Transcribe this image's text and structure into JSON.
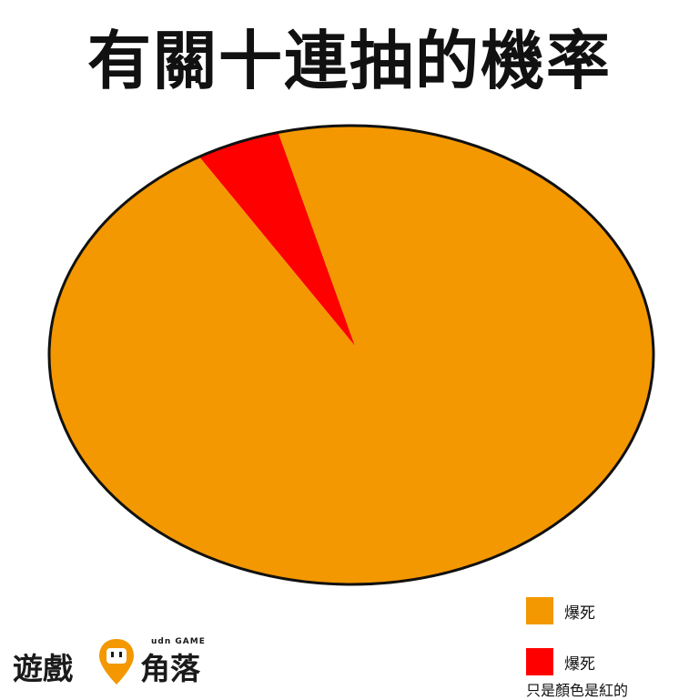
{
  "chart_data": {
    "type": "pie",
    "title": "有關十連抽的機率",
    "slices": [
      {
        "label": "爆死",
        "value": 95.5,
        "color": "#F39800"
      },
      {
        "label": "爆死",
        "value": 4.5,
        "color": "#FF0000"
      }
    ],
    "legend": {
      "placement": "bottom-right",
      "entries": [
        {
          "label": "爆死",
          "color": "#F39800"
        },
        {
          "label": "爆死",
          "color": "#FF0000"
        }
      ],
      "note": "只是顏色是紅的"
    }
  },
  "logo": {
    "left_text": "遊戲",
    "right_text": "角落",
    "sub_text": "udn GAME",
    "color": "#F39800"
  }
}
